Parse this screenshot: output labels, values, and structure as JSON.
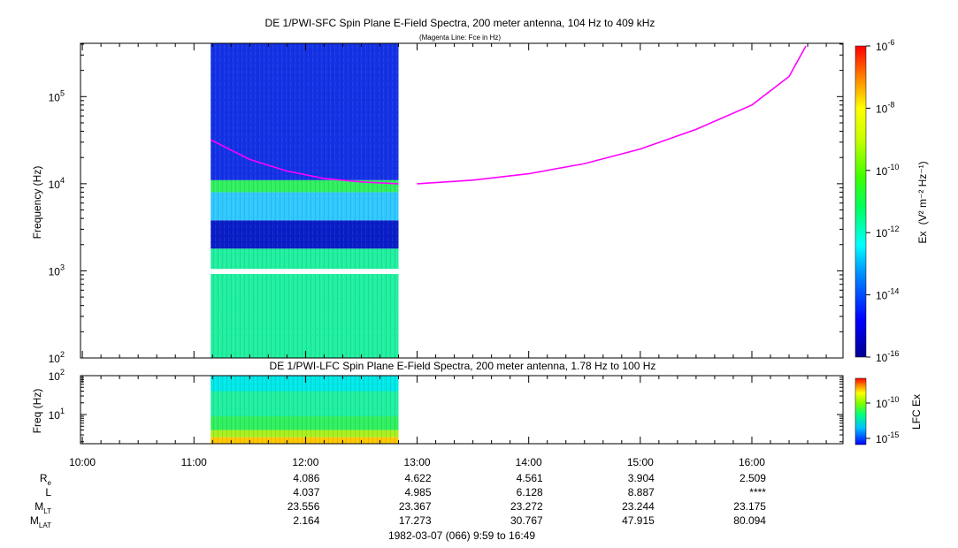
{
  "chart_data": [
    {
      "type": "heatmap",
      "title": "DE 1/PWI-SFC  Spin Plane E-Field Spectra, 200 meter antenna, 104 Hz to 409 kHz",
      "subtitle": "(Magenta Line: Fce in Hz)",
      "ylabel": "Frequency (Hz)",
      "y_scale": "log",
      "ylim_hz": [
        100,
        409000
      ],
      "y_ticks": [
        {
          "value": 100,
          "mant": "10",
          "exp": "2"
        },
        {
          "value": 1000,
          "mant": "10",
          "exp": "3"
        },
        {
          "value": 10000,
          "mant": "10",
          "exp": "4"
        },
        {
          "value": 100000,
          "mant": "10",
          "exp": "5"
        }
      ],
      "data_coverage_ut": [
        "11:09",
        "12:50"
      ],
      "data_gap_hz": [
        920,
        1050
      ],
      "spectral_levels": [
        {
          "f_from": 100,
          "f_to": 920,
          "level": "green / cyan"
        },
        {
          "f_from": 1050,
          "f_to": 1800,
          "level": "green / cyan"
        },
        {
          "f_from": 1800,
          "f_to": 3800,
          "level": "dark blue"
        },
        {
          "f_from": 3800,
          "f_to": 8000,
          "level": "cyan / light blue"
        },
        {
          "f_from": 8000,
          "f_to": 11000,
          "level": "green"
        },
        {
          "f_from": 11000,
          "f_to": 409000,
          "level": "blue / dark blue"
        }
      ],
      "colorbar": {
        "label": "Ex",
        "label_units": "(V² m⁻² Hz⁻¹)",
        "range_exp": [
          -16,
          -6
        ],
        "ticks": [
          {
            "mant": "10",
            "exp": "-6"
          },
          {
            "mant": "10",
            "exp": "-8"
          },
          {
            "mant": "10",
            "exp": "-10"
          },
          {
            "mant": "10",
            "exp": "-12"
          },
          {
            "mant": "10",
            "exp": "-14"
          },
          {
            "mant": "10",
            "exp": "-16"
          }
        ]
      },
      "fce_line": {
        "name": "Fce",
        "color": "#ff00ff",
        "points": [
          {
            "t": "11:09",
            "f_hz": 32000
          },
          {
            "t": "11:30",
            "f_hz": 19000
          },
          {
            "t": "11:50",
            "f_hz": 14000
          },
          {
            "t": "12:10",
            "f_hz": 11500
          },
          {
            "t": "12:30",
            "f_hz": 10500
          },
          {
            "t": "12:50",
            "f_hz": 10000
          },
          {
            "t": "13:00",
            "f_hz": 10000
          },
          {
            "t": "13:30",
            "f_hz": 11000
          },
          {
            "t": "14:00",
            "f_hz": 13000
          },
          {
            "t": "14:30",
            "f_hz": 17000
          },
          {
            "t": "15:00",
            "f_hz": 25000
          },
          {
            "t": "15:30",
            "f_hz": 42000
          },
          {
            "t": "16:00",
            "f_hz": 80000
          },
          {
            "t": "16:20",
            "f_hz": 170000
          },
          {
            "t": "16:29",
            "f_hz": 380000
          }
        ]
      }
    },
    {
      "type": "heatmap",
      "title": "DE 1/PWI-LFC  Spin Plane E-Field Spectra, 200 meter antenna, 1.78 Hz to 100 Hz",
      "ylabel": "Freq (Hz)",
      "y_scale": "log",
      "ylim_hz": [
        1.78,
        100
      ],
      "y_ticks": [
        {
          "value": 10,
          "mant": "10",
          "exp": "1"
        },
        {
          "value": 100,
          "mant": "10",
          "exp": "2"
        }
      ],
      "data_coverage_ut": [
        "11:09",
        "12:50"
      ],
      "spectral_levels": [
        {
          "f_from": 40,
          "f_to": 100,
          "level": "cyan"
        },
        {
          "f_from": 9,
          "f_to": 40,
          "level": "green / cyan"
        },
        {
          "f_from": 4,
          "f_to": 9,
          "level": "green"
        },
        {
          "f_from": 2.6,
          "f_to": 4,
          "level": "yellow-green"
        },
        {
          "f_from": 1.78,
          "f_to": 2.6,
          "level": "yellow / orange"
        }
      ],
      "colorbar": {
        "label": "LFC Ex",
        "ticks": [
          {
            "mant": "10",
            "exp": "-10"
          },
          {
            "mant": "10",
            "exp": "-15"
          }
        ]
      }
    }
  ],
  "time_axis": {
    "tick_labels": [
      "10:00",
      "11:00",
      "12:00",
      "13:00",
      "14:00",
      "15:00",
      "16:00"
    ],
    "range_ut": [
      "9:59",
      "16:49"
    ]
  },
  "ephemeris": {
    "row_labels": [
      {
        "main": "R",
        "sub": "e"
      },
      {
        "main": "L",
        "sub": ""
      },
      {
        "main": "M",
        "sub": "LT"
      },
      {
        "main": "M",
        "sub": "LAT"
      }
    ],
    "columns": [
      {
        "time": "12:00",
        "values": [
          "4.086",
          "4.037",
          "23.556",
          "2.164"
        ]
      },
      {
        "time": "13:00",
        "values": [
          "4.622",
          "4.985",
          "23.367",
          "17.273"
        ]
      },
      {
        "time": "14:00",
        "values": [
          "4.561",
          "6.128",
          "23.272",
          "30.767"
        ]
      },
      {
        "time": "15:00",
        "values": [
          "3.904",
          "8.887",
          "23.244",
          "47.915"
        ]
      },
      {
        "time": "16:00",
        "values": [
          "2.509",
          "****",
          "23.175",
          "80.094"
        ]
      }
    ]
  },
  "footer": "1982-03-07 (066) 9:59 to 16:49"
}
